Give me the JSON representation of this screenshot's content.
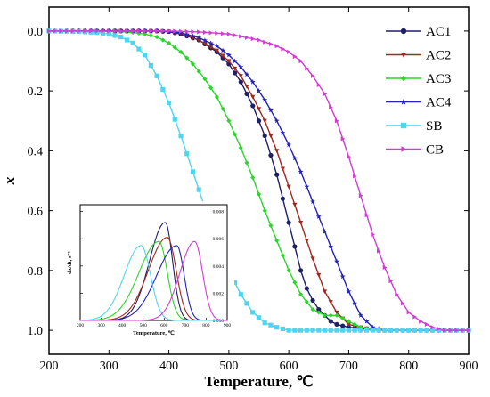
{
  "chart_data": [
    {
      "type": "line",
      "title": "",
      "xlabel": "Temperature,  ℃",
      "ylabel": "x",
      "xlim": [
        200,
        900
      ],
      "ylim": [
        1.08,
        -0.08
      ],
      "y_inverted": true,
      "xticks": [
        "200",
        "300",
        "400",
        "500",
        "600",
        "700",
        "800",
        "900"
      ],
      "yticks": [
        "0.0",
        "0.2",
        "0.4",
        "0.6",
        "0.8",
        "1.0"
      ],
      "legend_position": "top-right",
      "series": [
        {
          "name": "AC1",
          "color": "#1f1f66",
          "marker": "circle",
          "x": [
            200,
            300,
            350,
            380,
            400,
            420,
            450,
            480,
            500,
            520,
            540,
            560,
            580,
            590,
            600,
            610,
            620,
            630,
            640,
            650,
            660,
            670,
            680,
            700,
            750,
            800,
            900
          ],
          "y": [
            0,
            0,
            0,
            0,
            0.002,
            0.01,
            0.03,
            0.07,
            0.11,
            0.17,
            0.25,
            0.35,
            0.48,
            0.56,
            0.64,
            0.72,
            0.8,
            0.86,
            0.9,
            0.93,
            0.95,
            0.97,
            0.98,
            0.99,
            1.0,
            1.0,
            1.0
          ]
        },
        {
          "name": "AC2",
          "color": "#a0281e",
          "marker": "triangle-down",
          "x": [
            200,
            300,
            350,
            380,
            400,
            420,
            450,
            480,
            500,
            520,
            540,
            560,
            580,
            600,
            620,
            640,
            660,
            680,
            700,
            720,
            750,
            800,
            900
          ],
          "y": [
            0,
            0,
            0,
            0,
            0.002,
            0.008,
            0.03,
            0.065,
            0.1,
            0.15,
            0.22,
            0.3,
            0.4,
            0.52,
            0.64,
            0.76,
            0.87,
            0.94,
            0.98,
            0.99,
            1.0,
            1.0,
            1.0
          ]
        },
        {
          "name": "AC3",
          "color": "#2ad62a",
          "marker": "diamond",
          "x": [
            200,
            300,
            320,
            340,
            360,
            380,
            400,
            420,
            440,
            460,
            480,
            500,
            520,
            540,
            560,
            580,
            600,
            620,
            640,
            650,
            660,
            680,
            700,
            720,
            750,
            800,
            900
          ],
          "y": [
            0,
            0,
            0.002,
            0.005,
            0.01,
            0.02,
            0.04,
            0.07,
            0.11,
            0.16,
            0.22,
            0.3,
            0.39,
            0.49,
            0.6,
            0.7,
            0.8,
            0.88,
            0.93,
            0.94,
            0.95,
            0.95,
            0.97,
            0.99,
            1.0,
            1.0,
            1.0
          ]
        },
        {
          "name": "AC4",
          "color": "#2222bb",
          "marker": "star",
          "x": [
            200,
            300,
            350,
            380,
            400,
            420,
            450,
            480,
            500,
            520,
            540,
            560,
            580,
            600,
            620,
            640,
            660,
            680,
            700,
            720,
            740,
            760,
            800,
            900
          ],
          "y": [
            0,
            0,
            0,
            0,
            0.002,
            0.006,
            0.022,
            0.05,
            0.08,
            0.12,
            0.17,
            0.23,
            0.3,
            0.38,
            0.47,
            0.57,
            0.67,
            0.77,
            0.87,
            0.95,
            0.99,
            1.0,
            1.0,
            1.0
          ]
        },
        {
          "name": "SB",
          "color": "#4cd6f0",
          "marker": "square",
          "x": [
            200,
            250,
            280,
            300,
            320,
            340,
            360,
            380,
            400,
            420,
            440,
            460,
            480,
            500,
            520,
            540,
            560,
            580,
            600,
            650,
            700,
            800,
            900
          ],
          "y": [
            0,
            0.002,
            0.005,
            0.01,
            0.02,
            0.04,
            0.08,
            0.15,
            0.24,
            0.35,
            0.47,
            0.59,
            0.7,
            0.8,
            0.88,
            0.94,
            0.975,
            0.99,
            1.0,
            1.0,
            1.0,
            1.0,
            1.0
          ]
        },
        {
          "name": "CB",
          "color": "#d23cd2",
          "marker": "triangle-right",
          "x": [
            200,
            300,
            400,
            450,
            500,
            550,
            580,
            600,
            620,
            640,
            660,
            680,
            700,
            720,
            740,
            760,
            780,
            800,
            820,
            840,
            860,
            900
          ],
          "y": [
            0,
            0,
            0,
            0.003,
            0.01,
            0.03,
            0.05,
            0.07,
            0.1,
            0.15,
            0.21,
            0.3,
            0.42,
            0.55,
            0.68,
            0.79,
            0.88,
            0.94,
            0.97,
            0.99,
            1.0,
            1.0
          ]
        }
      ]
    },
    {
      "type": "line",
      "title": "",
      "xlabel": "Temperature,  ℃",
      "ylabel": "dx/dt,  s⁻¹",
      "xlim": [
        200,
        900
      ],
      "ylim": [
        0,
        0.0085
      ],
      "xticks": [
        "200",
        "300",
        "400",
        "500",
        "600",
        "700",
        "800",
        "900"
      ],
      "yticks": [
        "0.000",
        "0.002",
        "0.004",
        "0.006",
        "0.008"
      ],
      "series": [
        {
          "name": "AC1",
          "color": "#1f1f66",
          "peak_x": 605,
          "peak_y": 0.0072,
          "left_sigma": 75,
          "right_sigma": 35
        },
        {
          "name": "AC2",
          "color": "#a0281e",
          "peak_x": 615,
          "peak_y": 0.0061,
          "left_sigma": 90,
          "right_sigma": 42
        },
        {
          "name": "AC3",
          "color": "#2ad62a",
          "peak_x": 575,
          "peak_y": 0.0058,
          "left_sigma": 95,
          "right_sigma": 40
        },
        {
          "name": "AC4",
          "color": "#2222bb",
          "peak_x": 660,
          "peak_y": 0.0055,
          "left_sigma": 95,
          "right_sigma": 35
        },
        {
          "name": "SB",
          "color": "#4cd6f0",
          "peak_x": 490,
          "peak_y": 0.0055,
          "left_sigma": 80,
          "right_sigma": 45
        },
        {
          "name": "CB",
          "color": "#d23cd2",
          "peak_x": 745,
          "peak_y": 0.0058,
          "left_sigma": 70,
          "right_sigma": 38
        }
      ]
    }
  ]
}
